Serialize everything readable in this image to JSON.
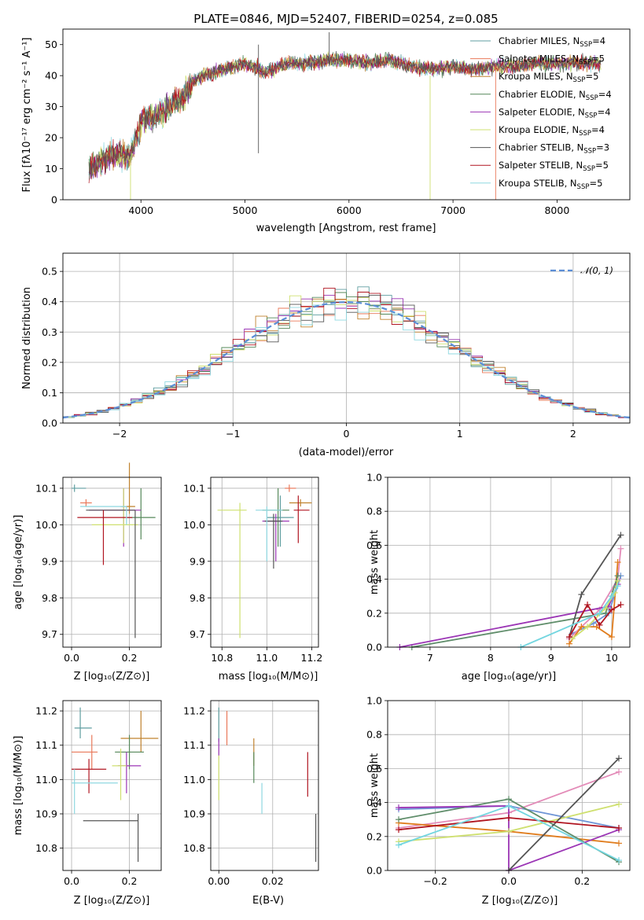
{
  "title": "PLATE=0846, MJD=52407, FIBERID=0254, z=0.085",
  "colors": [
    "#5f9ea0",
    "#e9795a",
    "#c0822e",
    "#55885a",
    "#9b35b5",
    "#cfe070",
    "#555555",
    "#b01520",
    "#8fd8e0"
  ],
  "legend": [
    {
      "base": "Chabrier MILES, N",
      "sub": "SSP",
      "tail": "=4"
    },
    {
      "base": "Salpeter MILES, N",
      "sub": "SSP",
      "tail": "=5"
    },
    {
      "base": "Kroupa MILES, N",
      "sub": "SSP",
      "tail": "=5"
    },
    {
      "base": "Chabrier ELODIE, N",
      "sub": "SSP",
      "tail": "=4"
    },
    {
      "base": "Salpeter ELODIE, N",
      "sub": "SSP",
      "tail": "=4"
    },
    {
      "base": "Kroupa ELODIE, N",
      "sub": "SSP",
      "tail": "=4"
    },
    {
      "base": "Chabrier STELIB, N",
      "sub": "SSP",
      "tail": "=3"
    },
    {
      "base": "Salpeter STELIB, N",
      "sub": "SSP",
      "tail": "=5"
    },
    {
      "base": "Kroupa STELIB, N",
      "sub": "SSP",
      "tail": "=5"
    }
  ],
  "labels": {
    "spec_x": "wavelength [Angstrom, rest frame]",
    "spec_y": "Flux [fλ10⁻¹⁷ erg cm⁻² s⁻¹ A⁻¹]",
    "hist_x": "(data-model)/error",
    "hist_y": "Normed distribution",
    "hist_legend": "𝒩(0, 1)",
    "age_y": "age  [log₁₀(age/yr)]",
    "z_x": "Z [log₁₀(Z/Z⊙)]",
    "mass_x": "mass [log₁₀(M/M⊙)]",
    "mass_y": "mass [log₁₀(M/M⊙)]",
    "ebv_x": "E(B-V)",
    "mw_y": "mass weight",
    "mw_age_x": "age  [log₁₀(age/yr)]",
    "mw_z_x": "Z [log₁₀(Z/Z⊙)]"
  },
  "chart_data": [
    {
      "id": "spectrum",
      "type": "line",
      "xlabel": "wavelength [Angstrom, rest frame]",
      "ylabel": "Flux [fλ10⁻¹⁷ erg cm⁻² s⁻¹ A⁻¹]",
      "xlim": [
        3250,
        8700
      ],
      "ylim": [
        0,
        55
      ],
      "xticks": [
        4000,
        5000,
        6000,
        7000,
        8000
      ],
      "yticks": [
        0,
        10,
        20,
        30,
        40,
        50
      ],
      "grid": false,
      "legend_position": "top-right",
      "envelope": {
        "x": [
          3500,
          3600,
          3700,
          3800,
          3900,
          4000,
          4100,
          4200,
          4300,
          4400,
          4500,
          4600,
          4800,
          5000,
          5200,
          5400,
          5600,
          5800,
          6000,
          6200,
          6400,
          6600,
          6800,
          7000,
          7200,
          7400,
          7600,
          7800,
          8000,
          8200,
          8400
        ],
        "y": [
          10,
          12,
          14,
          15,
          14,
          25,
          27,
          28,
          31,
          33,
          38,
          40,
          42,
          44,
          41,
          44,
          44,
          45,
          45,
          44,
          45,
          43,
          42,
          43,
          42,
          43,
          43,
          44,
          44,
          44,
          44
        ]
      }
    },
    {
      "id": "residuals",
      "type": "histogram",
      "xlabel": "(data-model)/error",
      "ylabel": "Normed distribution",
      "xlim": [
        -2.5,
        2.5
      ],
      "ylim": [
        0,
        0.56
      ],
      "xticks": [
        -2,
        -1,
        0,
        1,
        2
      ],
      "yticks": [
        0.0,
        0.1,
        0.2,
        0.3,
        0.4,
        0.5
      ],
      "grid": true,
      "legend_position": "top-right",
      "reference": "N(0,1)",
      "bin_width": 0.1
    },
    {
      "id": "age_vs_z",
      "type": "errorbar",
      "xlim": [
        -0.03,
        0.31
      ],
      "ylim": [
        9.665,
        10.13
      ],
      "xticks": [
        0.0,
        0.2
      ],
      "yticks": [
        9.7,
        9.8,
        9.9,
        10.0,
        10.1
      ],
      "points": [
        {
          "x": 0.01,
          "y": 10.1,
          "xe": [
            0.01,
            0.04
          ],
          "ye": [
            0.01,
            0.01
          ]
        },
        {
          "x": 0.05,
          "y": 10.06,
          "xe": [
            0.02,
            0.02
          ],
          "ye": [
            0.01,
            0.01
          ]
        },
        {
          "x": 0.2,
          "y": 10.05,
          "xe": [
            0.03,
            0.02
          ],
          "ye": [
            0.02,
            0.12
          ]
        },
        {
          "x": 0.24,
          "y": 10.02,
          "xe": [
            0.05,
            0.05
          ],
          "ye": [
            0.06,
            0.08
          ]
        },
        {
          "x": 0.18,
          "y": 10.04,
          "xe": [
            0.12,
            0.06
          ],
          "ye": [
            0.1,
            0.06
          ]
        },
        {
          "x": 0.18,
          "y": 10.0,
          "xe": [
            0.11,
            0.05
          ],
          "ye": [
            0.05,
            0.1
          ]
        },
        {
          "x": 0.22,
          "y": 10.04,
          "xe": [
            0.17,
            0.0
          ],
          "ye": [
            0.35,
            0.0
          ]
        },
        {
          "x": 0.11,
          "y": 10.02,
          "xe": [
            0.09,
            0.1
          ],
          "ye": [
            0.13,
            0.02
          ]
        },
        {
          "x": 0.19,
          "y": 10.05,
          "xe": [
            0.16,
            0.0
          ],
          "ye": [
            0.05,
            0.0
          ]
        }
      ]
    },
    {
      "id": "age_vs_mass",
      "type": "errorbar",
      "xlim": [
        10.75,
        11.23
      ],
      "ylim": [
        9.665,
        10.13
      ],
      "xticks": [
        10.8,
        11.0,
        11.2
      ],
      "yticks": [
        9.7,
        9.8,
        9.9,
        10.0,
        10.1
      ],
      "points": [
        {
          "x": 11.06,
          "y": 10.02,
          "xe": [
            0.06,
            0.06
          ],
          "ye": [
            0.08,
            0.06
          ]
        },
        {
          "x": 11.1,
          "y": 10.1,
          "xe": [
            0.02,
            0.03
          ],
          "ye": [
            0.01,
            0.01
          ]
        },
        {
          "x": 11.15,
          "y": 10.06,
          "xe": [
            0.05,
            0.05
          ],
          "ye": [
            0.01,
            0.01
          ]
        },
        {
          "x": 11.05,
          "y": 10.04,
          "xe": [
            0.07,
            0.05
          ],
          "ye": [
            0.1,
            0.06
          ]
        },
        {
          "x": 11.04,
          "y": 10.01,
          "xe": [
            0.06,
            0.06
          ],
          "ye": [
            0.11,
            0.02
          ]
        },
        {
          "x": 10.88,
          "y": 10.04,
          "xe": [
            0.1,
            0.03
          ],
          "ye": [
            0.35,
            0.02
          ]
        },
        {
          "x": 11.03,
          "y": 10.01,
          "xe": [
            0.04,
            0.04
          ],
          "ye": [
            0.13,
            0.02
          ]
        },
        {
          "x": 11.14,
          "y": 10.04,
          "xe": [
            0.02,
            0.05
          ],
          "ye": [
            0.09,
            0.04
          ]
        },
        {
          "x": 11.0,
          "y": 10.04,
          "xe": [
            0.05,
            0.07
          ],
          "ye": [
            0.14,
            0.01
          ]
        }
      ]
    },
    {
      "id": "mass_vs_z",
      "type": "errorbar",
      "xlim": [
        -0.03,
        0.31
      ],
      "ylim": [
        10.735,
        11.23
      ],
      "xticks": [
        0.0,
        0.2
      ],
      "yticks": [
        10.8,
        10.9,
        11.0,
        11.1,
        11.2
      ],
      "points": [
        {
          "x": 0.03,
          "y": 11.15,
          "xe": [
            0.02,
            0.04
          ],
          "ye": [
            0.03,
            0.06
          ]
        },
        {
          "x": 0.07,
          "y": 11.08,
          "xe": [
            0.07,
            0.02
          ],
          "ye": [
            0.05,
            0.05
          ]
        },
        {
          "x": 0.24,
          "y": 11.12,
          "xe": [
            0.07,
            0.06
          ],
          "ye": [
            0.04,
            0.08
          ]
        },
        {
          "x": 0.2,
          "y": 11.08,
          "xe": [
            0.05,
            0.05
          ],
          "ye": [
            0.05,
            0.05
          ]
        },
        {
          "x": 0.19,
          "y": 11.04,
          "xe": [
            0.03,
            0.05
          ],
          "ye": [
            0.08,
            0.04
          ]
        },
        {
          "x": 0.17,
          "y": 11.04,
          "xe": [
            0.03,
            0.02
          ],
          "ye": [
            0.1,
            0.05
          ]
        },
        {
          "x": 0.23,
          "y": 10.88,
          "xe": [
            0.19,
            0.0
          ],
          "ye": [
            0.12,
            0.02
          ]
        },
        {
          "x": 0.06,
          "y": 11.03,
          "xe": [
            0.06,
            0.06
          ],
          "ye": [
            0.07,
            0.03
          ]
        },
        {
          "x": 0.01,
          "y": 10.99,
          "xe": [
            0.01,
            0.15
          ],
          "ye": [
            0.09,
            0.04
          ]
        }
      ]
    },
    {
      "id": "mass_vs_ebv",
      "type": "errorbar",
      "xlim": [
        -0.003,
        0.037
      ],
      "ylim": [
        10.735,
        11.23
      ],
      "xticks": [
        0.0,
        0.02
      ],
      "yticks": [
        10.8,
        10.9,
        11.0,
        11.1,
        11.2
      ],
      "points": [
        {
          "x": 0.0,
          "y": 11.16,
          "xe": [
            0,
            0
          ],
          "ye": [
            0.05,
            0.05
          ]
        },
        {
          "x": 0.003,
          "y": 11.15,
          "xe": [
            0,
            0
          ],
          "ye": [
            0.05,
            0.05
          ]
        },
        {
          "x": 0.013,
          "y": 11.08,
          "xe": [
            0,
            0
          ],
          "ye": [
            0.04,
            0.04
          ]
        },
        {
          "x": 0.013,
          "y": 11.03,
          "xe": [
            0,
            0
          ],
          "ye": [
            0.04,
            0.05
          ]
        },
        {
          "x": 0.0,
          "y": 11.1,
          "xe": [
            0,
            0
          ],
          "ye": [
            0.03,
            0.02
          ]
        },
        {
          "x": 0.0,
          "y": 11.01,
          "xe": [
            0,
            0
          ],
          "ye": [
            0.07,
            0.06
          ]
        },
        {
          "x": 0.036,
          "y": 10.84,
          "xe": [
            0,
            0
          ],
          "ye": [
            0.08,
            0.06
          ]
        },
        {
          "x": 0.033,
          "y": 11.01,
          "xe": [
            0,
            0
          ],
          "ye": [
            0.06,
            0.07
          ]
        },
        {
          "x": 0.016,
          "y": 10.93,
          "xe": [
            0,
            0
          ],
          "ye": [
            0.03,
            0.06
          ]
        }
      ]
    },
    {
      "id": "mw_vs_age",
      "type": "line",
      "xlim": [
        6.3,
        10.3
      ],
      "ylim": [
        0,
        1
      ],
      "xticks": [
        7,
        8,
        9,
        10
      ],
      "yticks": [
        0.0,
        0.2,
        0.4,
        0.6,
        0.8,
        1.0
      ],
      "series": [
        {
          "x": [
            9.35,
            9.7,
            9.95,
            10.15
          ],
          "y": [
            0.08,
            0.14,
            0.2,
            0.42
          ]
        },
        {
          "x": [
            9.3,
            9.5,
            9.8,
            10.1,
            10.15
          ],
          "y": [
            0.05,
            0.12,
            0.22,
            0.4,
            0.58
          ]
        },
        {
          "x": [
            9.3,
            9.5,
            9.75,
            10.0,
            10.1
          ],
          "y": [
            0.02,
            0.12,
            0.12,
            0.06,
            0.5
          ]
        },
        {
          "x": [
            6.7,
            9.9,
            10.1
          ],
          "y": [
            0.0,
            0.2,
            0.42
          ]
        },
        {
          "x": [
            6.5,
            9.95,
            10.1
          ],
          "y": [
            0.0,
            0.24,
            0.37
          ]
        },
        {
          "x": [
            9.35,
            9.6,
            9.9,
            10.05,
            10.1
          ],
          "y": [
            0.05,
            0.12,
            0.23,
            0.32,
            0.39
          ]
        },
        {
          "x": [
            9.3,
            9.5,
            10.15
          ],
          "y": [
            0.06,
            0.31,
            0.66
          ]
        },
        {
          "x": [
            9.3,
            9.6,
            9.8,
            10.0,
            10.15
          ],
          "y": [
            0.06,
            0.25,
            0.13,
            0.22,
            0.25
          ]
        },
        {
          "x": [
            8.5,
            9.8,
            10.0,
            10.1
          ],
          "y": [
            0.0,
            0.2,
            0.3,
            0.36
          ]
        }
      ]
    },
    {
      "id": "mw_vs_z",
      "type": "line",
      "xlim": [
        -0.33,
        0.33
      ],
      "ylim": [
        0,
        1
      ],
      "xticks": [
        -0.2,
        0.0,
        0.2
      ],
      "yticks": [
        0.0,
        0.2,
        0.4,
        0.6,
        0.8,
        1.0
      ],
      "series": [
        {
          "x": [
            -0.3,
            0.0,
            0.3
          ],
          "y": [
            0.36,
            0.38,
            0.25
          ]
        },
        {
          "x": [
            -0.3,
            0.0,
            0.3
          ],
          "y": [
            0.25,
            0.34,
            0.58
          ]
        },
        {
          "x": [
            -0.3,
            0.0,
            0.3
          ],
          "y": [
            0.28,
            0.23,
            0.16
          ]
        },
        {
          "x": [
            -0.3,
            0.0,
            0.3
          ],
          "y": [
            0.3,
            0.42,
            0.05
          ]
        },
        {
          "x": [
            -0.3,
            0.0,
            0.0,
            0.3
          ],
          "y": [
            0.37,
            0.38,
            0.0,
            0.24
          ]
        },
        {
          "x": [
            -0.3,
            0.0,
            0.3
          ],
          "y": [
            0.17,
            0.23,
            0.39
          ]
        },
        {
          "x": [
            0.0,
            0.3
          ],
          "y": [
            0.0,
            0.66
          ]
        },
        {
          "x": [
            -0.3,
            0.0,
            0.3
          ],
          "y": [
            0.24,
            0.31,
            0.25
          ]
        },
        {
          "x": [
            -0.3,
            0.0,
            0.3
          ],
          "y": [
            0.15,
            0.38,
            0.06
          ]
        }
      ]
    }
  ]
}
